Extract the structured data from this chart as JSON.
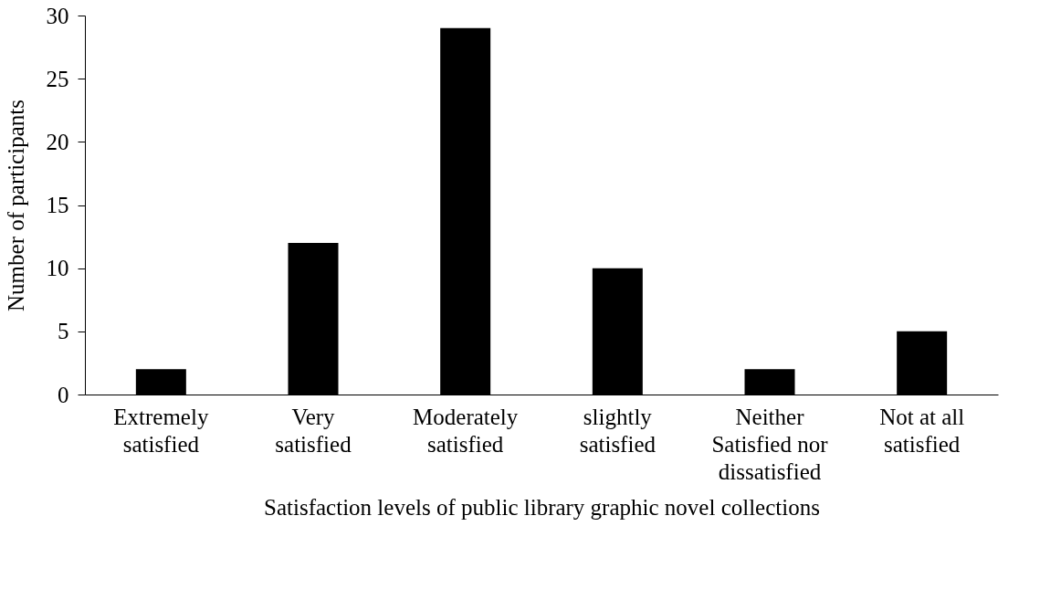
{
  "chart_data": {
    "type": "bar",
    "xlabel": "Satisfaction levels of public library graphic novel collections",
    "ylabel": "Number of participants",
    "categories": [
      "Extremely\nsatisfied",
      "Very\nsatisfied",
      "Moderately\nsatisfied",
      "slightly\nsatisfied",
      "Neither\nSatisfied nor\ndissatisfied",
      "Not at all\nsatisfied"
    ],
    "values": [
      2,
      12,
      29,
      10,
      2,
      5
    ],
    "color": "#000000",
    "ylim": [
      0,
      30
    ],
    "yticks": [
      0,
      5,
      10,
      15,
      20,
      25,
      30
    ],
    "grid": false
  }
}
